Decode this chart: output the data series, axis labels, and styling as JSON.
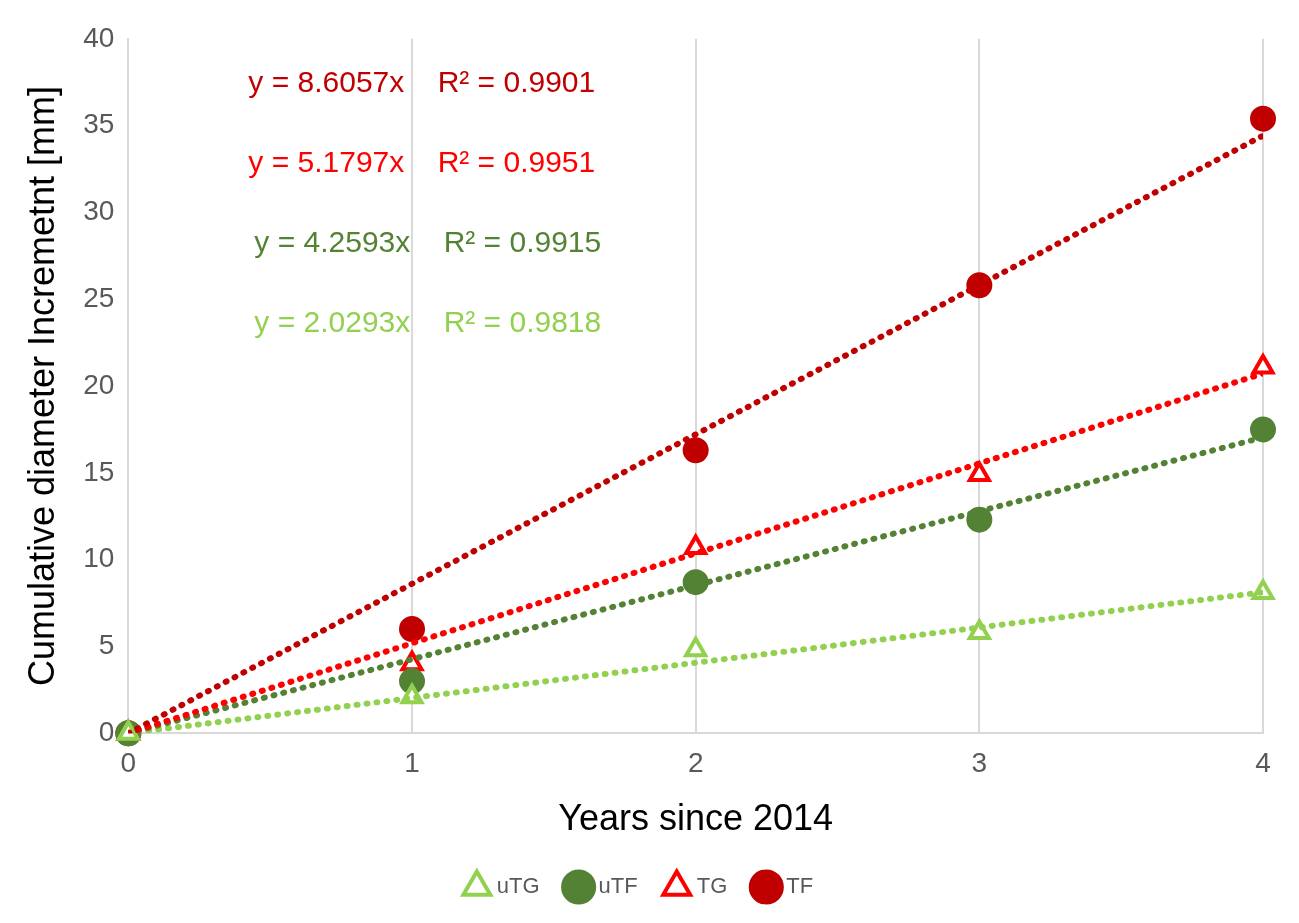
{
  "chart_data": {
    "type": "scatter",
    "xlabel": "Years since 2014",
    "ylabel": "Cumulative diameter Incremetnt [mm]",
    "xlim": [
      0,
      4
    ],
    "xticks": [
      0,
      1,
      2,
      3,
      4
    ],
    "ylim": [
      0,
      40
    ],
    "yticks": [
      0,
      5,
      10,
      15,
      20,
      25,
      30,
      35,
      40
    ],
    "grid": "x",
    "legend": "bottom",
    "annotations": [
      "y = 8.6057x    R² = 0.9901",
      "y = 5.1797x    R² = 0.9951",
      "y = 4.2593x    R² = 0.9915",
      "y = 2.0293x    R² = 0.9818"
    ],
    "series": [
      {
        "name": "uTG",
        "type": "scatter",
        "marker": "triangle",
        "color": "#92d050",
        "x": [
          0,
          1,
          2,
          3,
          4
        ],
        "values": [
          0,
          2.1,
          4.8,
          5.8,
          8.1
        ]
      },
      {
        "name": "uTF",
        "type": "scatter",
        "marker": "circle",
        "color": "#548235",
        "x": [
          0,
          1,
          2,
          3,
          4
        ],
        "values": [
          0,
          3.0,
          8.7,
          12.3,
          17.5
        ]
      },
      {
        "name": "TG",
        "type": "scatter",
        "marker": "triangle",
        "color": "#ff0000",
        "x": [
          0,
          1,
          2,
          3,
          4
        ],
        "values": [
          0,
          4.0,
          10.7,
          14.9,
          21.1
        ]
      },
      {
        "name": "TF",
        "type": "scatter",
        "marker": "circle",
        "color": "#c00000",
        "x": [
          0,
          1,
          2,
          3,
          4
        ],
        "values": [
          0,
          6.0,
          16.3,
          25.8,
          35.4
        ]
      },
      {
        "type": "line",
        "line_style": "dotted",
        "color": "#c00000",
        "x": [
          0,
          4
        ],
        "values": [
          0,
          34.42
        ]
      },
      {
        "type": "line",
        "line_style": "dotted",
        "color": "#ff0000",
        "x": [
          0,
          4
        ],
        "values": [
          0,
          20.72
        ]
      },
      {
        "type": "line",
        "line_style": "dotted",
        "color": "#548235",
        "x": [
          0,
          4
        ],
        "values": [
          0,
          17.04
        ]
      },
      {
        "type": "line",
        "line_style": "dotted",
        "color": "#92d050",
        "x": [
          0,
          4
        ],
        "values": [
          0,
          8.12
        ]
      }
    ]
  }
}
